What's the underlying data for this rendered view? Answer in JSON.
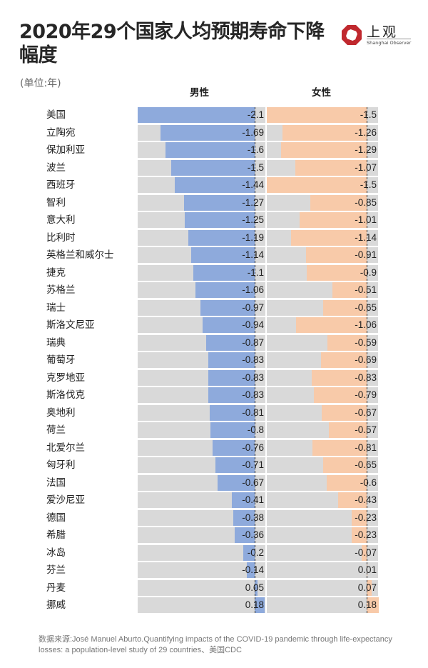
{
  "header": {
    "title": "2020年29个国家人均预期寿命下降幅度",
    "unit": "(单位:年)",
    "logo_cn": "上观",
    "logo_en": "Shanghai Observer"
  },
  "columns": {
    "male": "男性",
    "female": "女性"
  },
  "colors": {
    "male_bar": "#8eaadc",
    "female_bar": "#f8caa9",
    "track": "#d9d9d9",
    "logo_red": "#c0282e"
  },
  "footer": {
    "source": "数据来源:José Manuel Aburto.Quantifying impacts of the COVID-19 pandemic through life-expectancy losses: a population-level study of 29 countries、美国CDC"
  },
  "chart_data": {
    "type": "bar",
    "orientation": "horizontal",
    "title": "2020年29个国家人均预期寿命下降幅度",
    "subtitle": "(单位:年)",
    "xlabel": "",
    "ylabel": "",
    "categories": [
      "美国",
      "立陶宛",
      "保加利亚",
      "波兰",
      "西班牙",
      "智利",
      "意大利",
      "比利时",
      "英格兰和威尔士",
      "捷克",
      "苏格兰",
      "瑞士",
      "斯洛文尼亚",
      "瑞典",
      "葡萄牙",
      "克罗地亚",
      "斯洛伐克",
      "奥地利",
      "荷兰",
      "北爱尔兰",
      "匈牙利",
      "法国",
      "爱沙尼亚",
      "德国",
      "希腊",
      "冰岛",
      "芬兰",
      "丹麦",
      "挪威"
    ],
    "series": [
      {
        "name": "男性",
        "values": [
          -2.1,
          -1.69,
          -1.6,
          -1.5,
          -1.44,
          -1.27,
          -1.25,
          -1.19,
          -1.14,
          -1.1,
          -1.06,
          -0.97,
          -0.94,
          -0.87,
          -0.83,
          -0.83,
          -0.83,
          -0.81,
          -0.8,
          -0.76,
          -0.71,
          -0.67,
          -0.41,
          -0.38,
          -0.36,
          -0.2,
          -0.14,
          0.05,
          0.18
        ]
      },
      {
        "name": "女性",
        "values": [
          -1.5,
          -1.26,
          -1.29,
          -1.07,
          -1.5,
          -0.85,
          -1.01,
          -1.14,
          -0.91,
          -0.9,
          -0.51,
          -0.65,
          -1.06,
          -0.59,
          -0.69,
          -0.83,
          -0.79,
          -0.67,
          -0.57,
          -0.81,
          -0.65,
          -0.6,
          -0.43,
          -0.23,
          -0.23,
          -0.07,
          0.01,
          0.07,
          0.18
        ]
      }
    ],
    "xlim_male": [
      -2.1,
      0.19
    ],
    "xlim_female": [
      -1.5,
      0.17
    ],
    "grid": false,
    "legend": "column headers above panels"
  }
}
